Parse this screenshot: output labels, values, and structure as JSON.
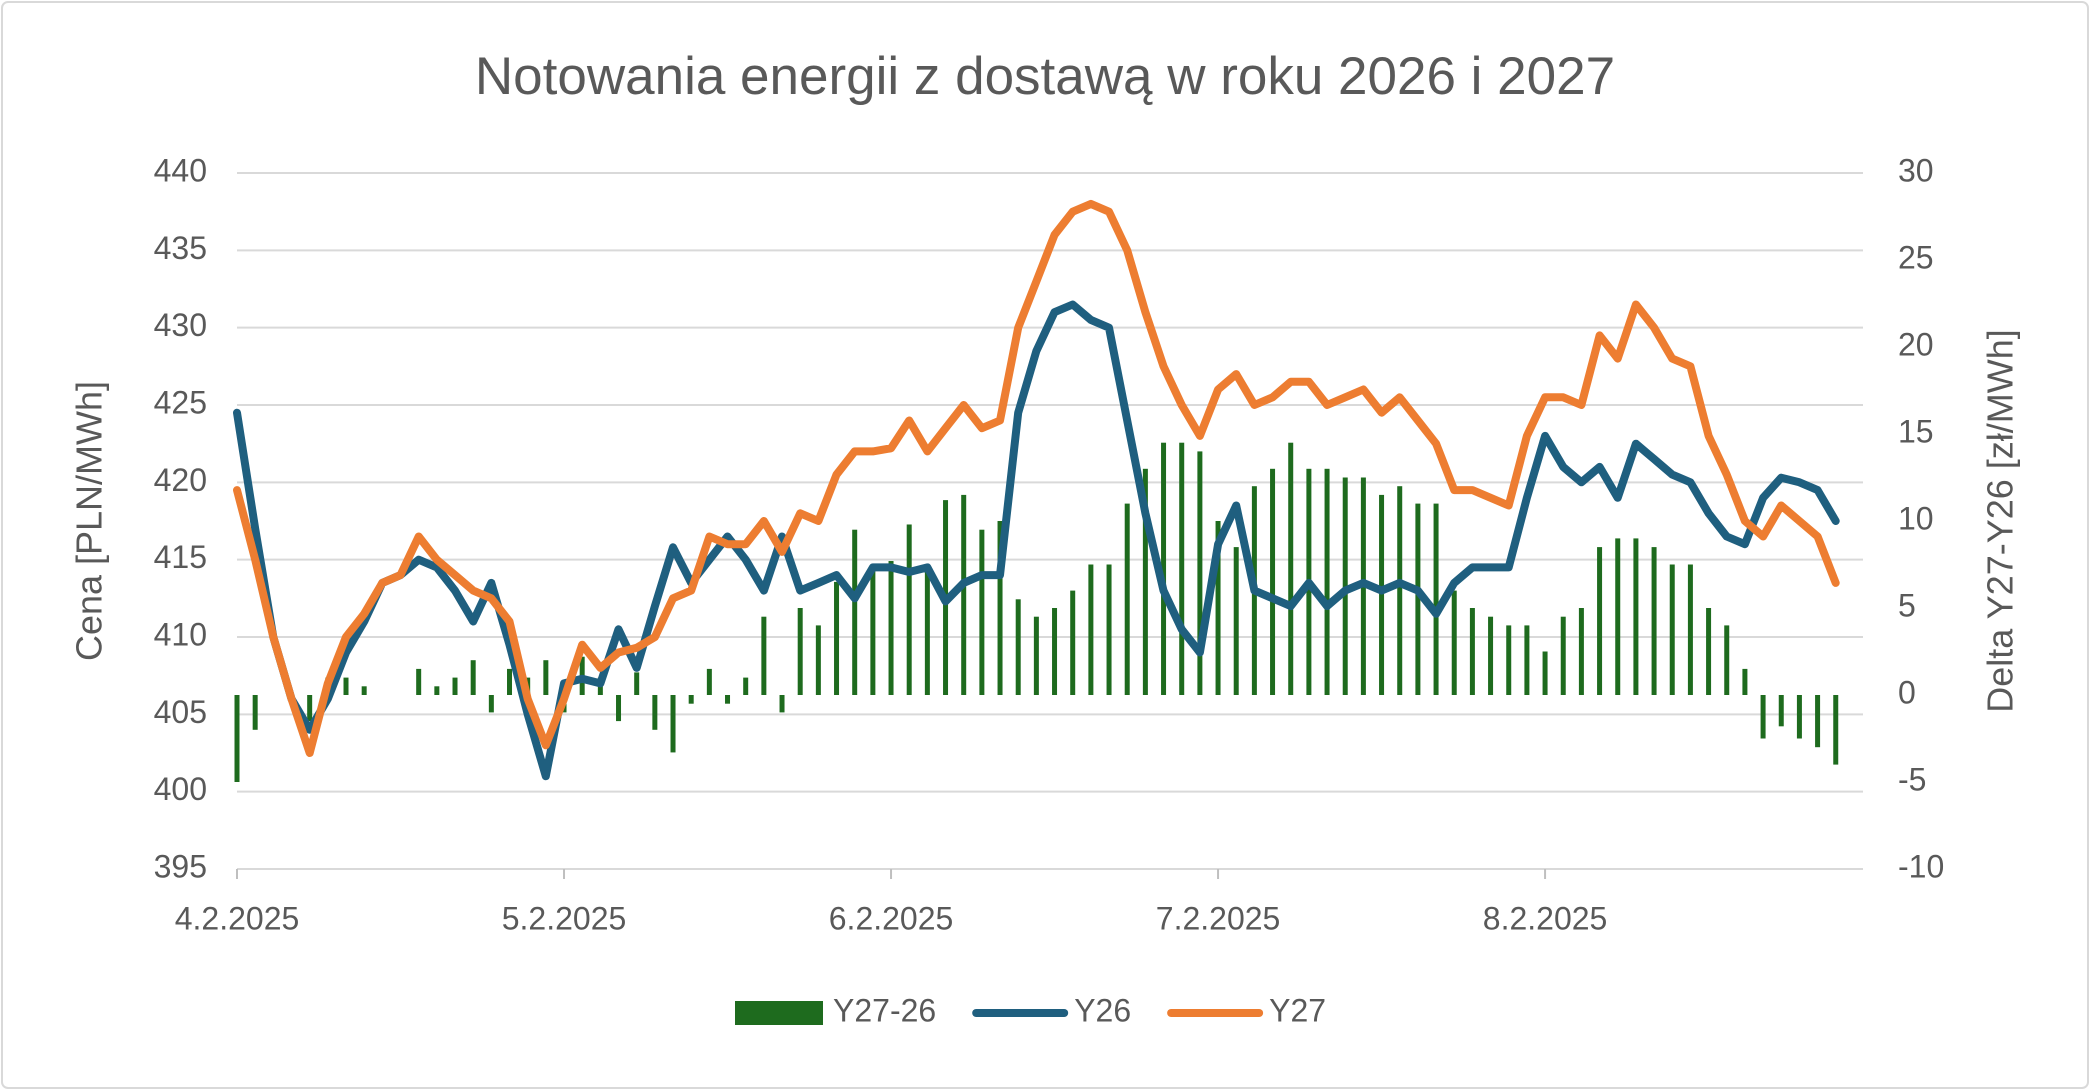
{
  "chart_data": {
    "type": "bar-line",
    "title": "Notowania energii z dostawą w roku 2026 i 2027",
    "y_label": "Cena [PLN/MWh]",
    "y2_label": "Delta Y27-Y26 [zł/MWh]",
    "categories": [
      "4.2.2025",
      null,
      null,
      null,
      null,
      null,
      null,
      null,
      null,
      null,
      null,
      null,
      null,
      null,
      null,
      null,
      null,
      null,
      "5.2.2025",
      null,
      null,
      null,
      null,
      null,
      null,
      null,
      null,
      null,
      null,
      null,
      null,
      null,
      null,
      null,
      null,
      null,
      "6.2.2025",
      null,
      null,
      null,
      null,
      null,
      null,
      null,
      null,
      null,
      null,
      null,
      null,
      null,
      null,
      null,
      null,
      null,
      "7.2.2025",
      null,
      null,
      null,
      null,
      null,
      null,
      null,
      null,
      null,
      null,
      null,
      null,
      null,
      null,
      null,
      null,
      null,
      "8.2.2025",
      null,
      null,
      null,
      null,
      null,
      null,
      null,
      null,
      null,
      null,
      null,
      null,
      null,
      null,
      null,
      null
    ],
    "series": [
      {
        "name": "Y27-26",
        "type": "bar",
        "axis": "y2",
        "color": "#1e6b1e",
        "values": [
          -5,
          -2,
          0,
          0,
          -1.5,
          1,
          1,
          0.5,
          0,
          0,
          1.5,
          0.5,
          1,
          2,
          -1,
          1.5,
          1,
          2,
          -1,
          2.2,
          1,
          -1.5,
          1.3,
          -2,
          -3.3,
          -0.5,
          1.5,
          -0.5,
          1,
          4.5,
          -1,
          5,
          4,
          6.5,
          9.5,
          7.5,
          7.7,
          9.8,
          7.5,
          11.2,
          11.5,
          9.5,
          10,
          5.5,
          4.5,
          5,
          6,
          7.5,
          7.5,
          11,
          13,
          14.5,
          14.5,
          14,
          10,
          8.5,
          12,
          13,
          14.5,
          13,
          13,
          12.5,
          12.5,
          11.5,
          12,
          11,
          11,
          6,
          5,
          4.5,
          4,
          4,
          2.5,
          4.5,
          5,
          8.5,
          9,
          9,
          8.5,
          7.5,
          7.5,
          5,
          4,
          1.5,
          -2.5,
          -1.8,
          -2.5,
          -3,
          -4
        ]
      },
      {
        "name": "Y26",
        "type": "line",
        "color": "#1f5f7f",
        "values": [
          424.5,
          417,
          410,
          406,
          404,
          406,
          409,
          411,
          413.5,
          414,
          415,
          414.5,
          413,
          411,
          413.5,
          409.5,
          405,
          401,
          407,
          407.3,
          407,
          410.5,
          408,
          412,
          415.8,
          413.5,
          415,
          416.5,
          415,
          413,
          416.5,
          413,
          413.5,
          414,
          412.5,
          414.5,
          414.5,
          414.2,
          414.5,
          412.3,
          413.5,
          414,
          414,
          424.5,
          428.5,
          431,
          431.5,
          430.5,
          430,
          424,
          418,
          413,
          410.5,
          409,
          416,
          418.5,
          413,
          412.5,
          412,
          413.5,
          412,
          413,
          413.5,
          413,
          413.5,
          413,
          411.5,
          413.5,
          414.5,
          414.5,
          414.5,
          419,
          423,
          421,
          420,
          421,
          419,
          422.5,
          421.5,
          420.5,
          420,
          418,
          416.5,
          416,
          419,
          420.3,
          420,
          419.5,
          417.5
        ]
      },
      {
        "name": "Y27",
        "type": "line",
        "color": "#ed7d31",
        "values": [
          419.5,
          415,
          410,
          406,
          402.5,
          407,
          410,
          411.5,
          413.5,
          414,
          416.5,
          415,
          414,
          413,
          412.5,
          411,
          406,
          403,
          406,
          409.5,
          408,
          409,
          409.3,
          410,
          412.5,
          413,
          416.5,
          416,
          416,
          417.5,
          415.5,
          418,
          417.5,
          420.5,
          422,
          422,
          422.2,
          424,
          422,
          423.5,
          425,
          423.5,
          424,
          430,
          433,
          436,
          437.5,
          438,
          437.5,
          435,
          431,
          427.5,
          425,
          423,
          426,
          427,
          425,
          425.5,
          426.5,
          426.5,
          425,
          425.5,
          426,
          424.5,
          425.5,
          424,
          422.5,
          419.5,
          419.5,
          419,
          418.5,
          423,
          425.5,
          425.5,
          425,
          429.5,
          428,
          431.5,
          430,
          428,
          427.5,
          423,
          420.5,
          417.5,
          416.5,
          418.5,
          417.5,
          416.5,
          413.5
        ]
      }
    ],
    "ylim": [
      395,
      440
    ],
    "yticks": [
      395,
      400,
      405,
      410,
      415,
      420,
      425,
      430,
      435,
      440
    ],
    "y2lim": [
      -10,
      30
    ],
    "y2ticks": [
      -10,
      -5,
      0,
      5,
      10,
      15,
      20,
      25,
      30
    ],
    "grid": true,
    "legend": "bottom"
  }
}
